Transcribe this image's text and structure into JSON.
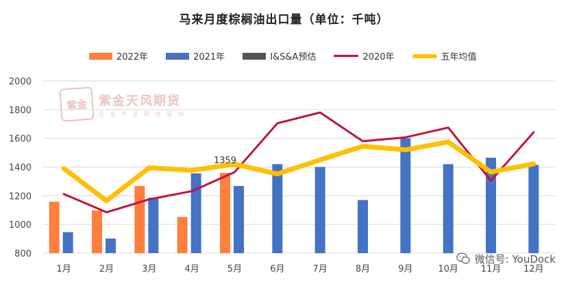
{
  "title": "马来月度棕榈油出口量（单位：千吨）",
  "legend": [
    {
      "label": "2022年",
      "kind": "bar",
      "color": "#ff7f3f"
    },
    {
      "label": "2021年",
      "kind": "bar",
      "color": "#4472c4"
    },
    {
      "label": "I&S&A预估",
      "kind": "bar",
      "color": "#555555"
    },
    {
      "label": "2020年",
      "kind": "line",
      "color": "#c0143c"
    },
    {
      "label": "五年均值",
      "kind": "thick-line",
      "color": "#ffc000"
    }
  ],
  "watermark": {
    "seal": "紫金",
    "name": "紫金天风期货",
    "sub": "企 业 产 业  研 究 驱 动"
  },
  "footer": {
    "text": "微信号: YouDock",
    "icon": "wechat-icon"
  },
  "chart_data": {
    "type": "bar",
    "categories": [
      "1月",
      "2月",
      "3月",
      "4月",
      "5月",
      "6月",
      "7月",
      "8月",
      "9月",
      "10月",
      "11月",
      "12月"
    ],
    "ylim": [
      800,
      2000
    ],
    "yticks": [
      800,
      1000,
      1200,
      1400,
      1600,
      1800,
      2000
    ],
    "grid": true,
    "legend_position": "top",
    "series": [
      {
        "name": "2022年",
        "type": "bar",
        "color": "#ff7f3f",
        "values": [
          1158,
          1097,
          1268,
          1052,
          1359,
          null,
          null,
          null,
          null,
          null,
          null,
          null
        ]
      },
      {
        "name": "2021年",
        "type": "bar",
        "color": "#4472c4",
        "values": [
          946,
          902,
          1187,
          1356,
          1268,
          1420,
          1400,
          1170,
          1600,
          1420,
          1465,
          1415
        ]
      },
      {
        "name": "I&S&A预估",
        "type": "bar",
        "color": "#555555",
        "values": [
          null,
          null,
          null,
          null,
          null,
          null,
          null,
          null,
          null,
          null,
          null,
          null
        ]
      },
      {
        "name": "2020年",
        "type": "line",
        "color": "#c0143c",
        "values": [
          1212,
          1085,
          1175,
          1232,
          1365,
          1705,
          1780,
          1580,
          1607,
          1675,
          1305,
          1642
        ]
      },
      {
        "name": "五年均值",
        "type": "line",
        "color": "#ffc000",
        "values": [
          1390,
          1165,
          1395,
          1377,
          1420,
          1352,
          1450,
          1545,
          1520,
          1575,
          1365,
          1422
        ]
      }
    ],
    "annotations": [
      {
        "category": "5月",
        "value": 1359,
        "text": "1359"
      }
    ]
  }
}
